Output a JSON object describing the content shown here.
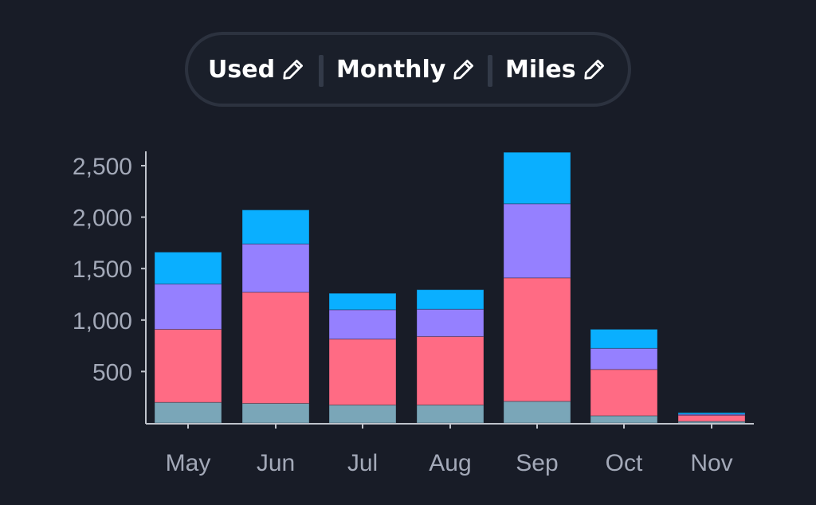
{
  "filters": [
    {
      "label": "Used",
      "icon": "pencil-icon"
    },
    {
      "label": "Monthly",
      "icon": "pencil-icon"
    },
    {
      "label": "Miles",
      "icon": "pencil-icon"
    }
  ],
  "colors": {
    "background": "#181c27",
    "text": "#ffffff",
    "axis_text": "#a3a9b8",
    "axis_line": "#c0c4cc"
  },
  "chart_data": {
    "type": "bar",
    "stacked": true,
    "categories": [
      "May",
      "Jun",
      "Jul",
      "Aug",
      "Sep",
      "Oct",
      "Nov"
    ],
    "series": [
      {
        "color": "#7aa6b8",
        "values": [
          200,
          190,
          175,
          175,
          210,
          70,
          15
        ]
      },
      {
        "color": "#ff6b84",
        "values": [
          710,
          1080,
          640,
          665,
          1200,
          450,
          60
        ]
      },
      {
        "color": "#9580ff",
        "values": [
          440,
          470,
          285,
          265,
          720,
          205,
          10
        ]
      },
      {
        "color": "#0aafff",
        "values": [
          310,
          330,
          160,
          190,
          500,
          185,
          15
        ]
      }
    ],
    "yticks": [
      500,
      1000,
      1500,
      2000,
      2500
    ],
    "ytick_labels": [
      "500",
      "1,000",
      "1,500",
      "2,000",
      "2,500"
    ],
    "ylim": [
      0,
      2700
    ],
    "grid": false,
    "legend": "none"
  }
}
